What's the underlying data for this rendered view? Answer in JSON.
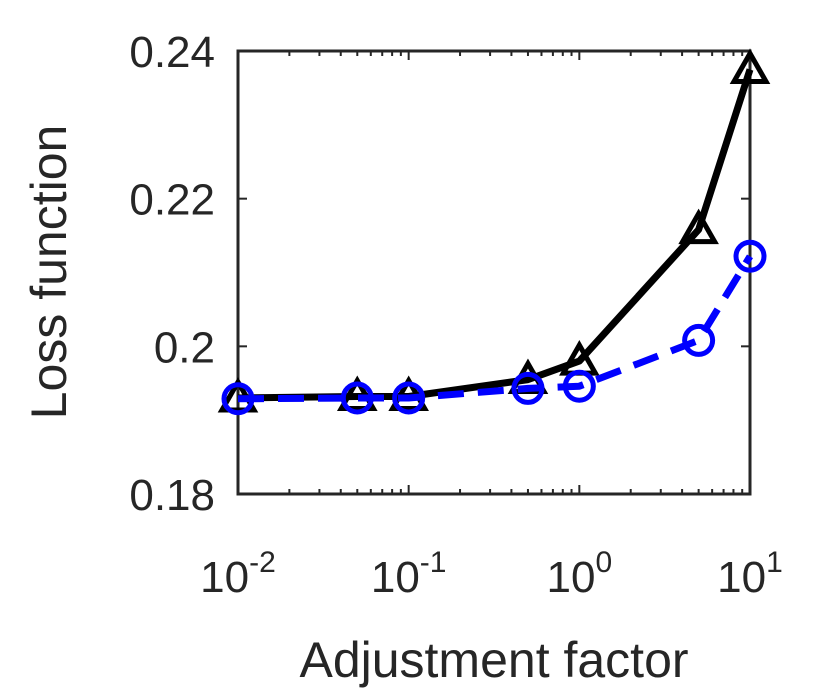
{
  "chart_data": {
    "type": "line",
    "xlabel": "Adjustment factor",
    "ylabel": "Loss function",
    "xscale": "log",
    "xlim": [
      0.01,
      10
    ],
    "ylim": [
      0.18,
      0.24
    ],
    "grid": false,
    "legend": "none",
    "x_ticks": [
      {
        "value": 0.01,
        "base": "10",
        "exp": "-2"
      },
      {
        "value": 0.1,
        "base": "10",
        "exp": "-1"
      },
      {
        "value": 1,
        "base": "10",
        "exp": "0"
      },
      {
        "value": 10,
        "base": "10",
        "exp": "1"
      }
    ],
    "y_ticks": [
      {
        "value": 0.18,
        "label": "0.18"
      },
      {
        "value": 0.2,
        "label": "0.2"
      },
      {
        "value": 0.22,
        "label": "0.22"
      },
      {
        "value": 0.24,
        "label": "0.24"
      }
    ],
    "series": [
      {
        "color": "#000000",
        "line_style": "solid",
        "marker": "triangle",
        "x": [
          0.01,
          0.05,
          0.1,
          0.5,
          1,
          5,
          10
        ],
        "y": [
          0.193,
          0.1932,
          0.1932,
          0.1955,
          0.198,
          0.2158,
          0.2375
        ]
      },
      {
        "color": "#0000ff",
        "line_style": "dashed",
        "marker": "circle",
        "x": [
          0.01,
          0.05,
          0.1,
          0.5,
          1,
          5,
          10
        ],
        "y": [
          0.1929,
          0.193,
          0.193,
          0.1943,
          0.1946,
          0.2008,
          0.2122
        ]
      }
    ]
  }
}
